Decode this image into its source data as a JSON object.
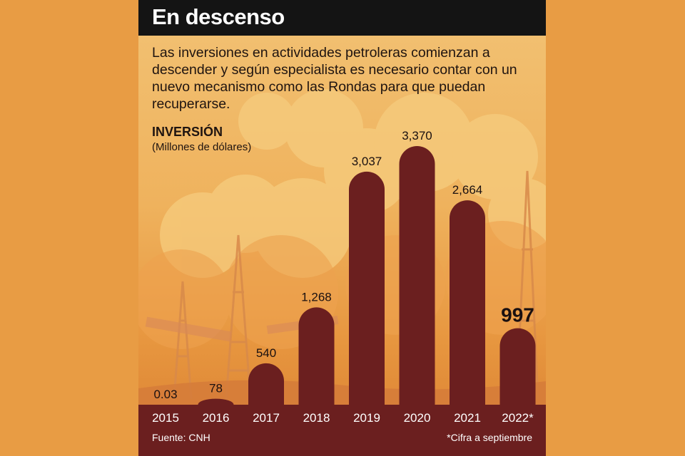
{
  "header": {
    "title": "En descenso"
  },
  "description": "Las inversiones en actividades petroleras comienzan a descender y según especialista es necesario contar con un nuevo mecanismo como las Rondas para que puedan recuperarse.",
  "footer": {
    "source": "Fuente: CNH",
    "note": "*Cifra a septiembre"
  },
  "colors": {
    "bar": "#6b1f1f",
    "background": "#e89c44",
    "header": "#141414"
  },
  "chart_data": {
    "type": "bar",
    "title": "",
    "ylabel": "INVERSIÓN",
    "ylabel_sub": "(Millones de dólares)",
    "xlabel": "",
    "categories": [
      "2015",
      "2016",
      "2017",
      "2018",
      "2019",
      "2020",
      "2021",
      "2022*"
    ],
    "values": [
      0.03,
      78,
      540,
      1268,
      3037,
      3370,
      2664,
      997
    ],
    "value_labels": [
      "0.03",
      "78",
      "540",
      "1,268",
      "3,037",
      "3,370",
      "2,664",
      "997"
    ],
    "ylim": [
      0,
      3370
    ],
    "grid": false,
    "highlight_index": 7
  }
}
